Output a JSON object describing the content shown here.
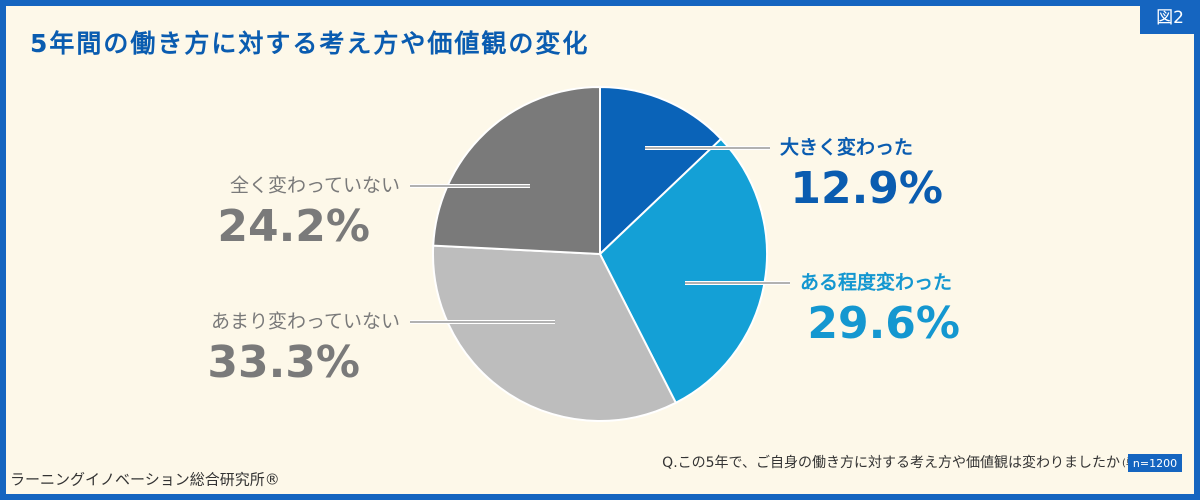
{
  "badge": "図2",
  "chart_data": {
    "type": "pie",
    "title": "5年間の働き方に対する考え方や価値観の変化",
    "categories": [
      "大きく変わった",
      "ある程度変わった",
      "あまり変わっていない",
      "全く変わっていない"
    ],
    "values": [
      12.9,
      29.6,
      33.3,
      24.2
    ],
    "value_labels": [
      "12.9%",
      "29.6%",
      "33.3%",
      "24.2%"
    ],
    "colors": [
      "#0a63b8",
      "#14a0d6",
      "#bdbdbd",
      "#7a7a7a"
    ],
    "label_colors": [
      "#0a5cb0",
      "#1497d0",
      "#7a7a7a",
      "#7a7a7a"
    ]
  },
  "question": "Q.この5年で、ご自身の働き方に対する考え方や価値観は変わりましたか",
  "answer_type": "(単一回答)",
  "sample": "n=1200",
  "source": "ラーニングイノベーション総合研究所®"
}
